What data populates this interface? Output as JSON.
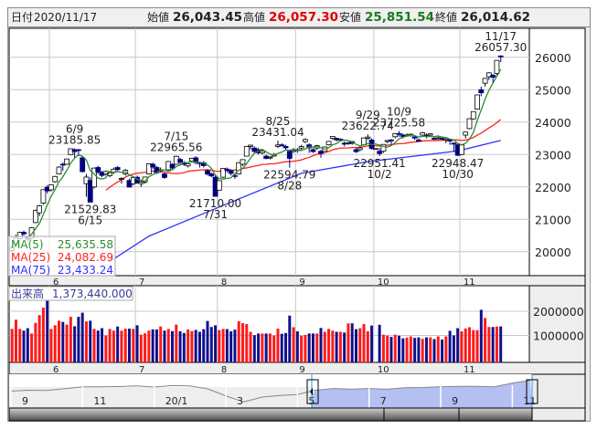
{
  "header": {
    "date_label": "日付",
    "date": "2020/11/17",
    "open_label": "始値",
    "open": "26,043.45",
    "high_label": "高値",
    "high": "26,057.30",
    "low_label": "安値",
    "low": "25,851.54",
    "close_label": "終値",
    "close": "26,014.62"
  },
  "colors": {
    "up_fill": "#ffffff",
    "down_fill": "#000080",
    "ma5": "#2e8b2e",
    "ma25": "#ff2020",
    "ma75": "#3030ff",
    "vol_up": "#ff1a1a",
    "vol_down": "#10108c",
    "high_text": "#e00000",
    "low_text": "#1a7a1a",
    "selection": "#b4bff2"
  },
  "legend": [
    {
      "label": "MA(5)",
      "value": "25,635.58",
      "color": "#2e8b2e"
    },
    {
      "label": "MA(25)",
      "value": "24,082.69",
      "color": "#ff2020"
    },
    {
      "label": "MA(75)",
      "value": "23,433.24",
      "color": "#3030ff"
    }
  ],
  "volume_label": {
    "label": "出来高",
    "value": "1,373,440.000"
  },
  "chart_data": {
    "type": "candlestick",
    "ylim": [
      19270,
      26900
    ],
    "yticks": [
      "20000",
      "21000",
      "22000",
      "23000",
      "24000",
      "25000",
      "26000"
    ],
    "volume_yticks": [
      "1000000",
      "2000000"
    ],
    "month_ticks": [
      {
        "date": "6/1",
        "label": "6"
      },
      {
        "date": "7/1",
        "label": "7"
      },
      {
        "date": "8/3",
        "label": "8"
      },
      {
        "date": "9/1",
        "label": "9"
      },
      {
        "date": "10/1",
        "label": "10"
      },
      {
        "date": "11/2",
        "label": "11"
      }
    ],
    "candles": [
      [
        "5/18",
        20037,
        20172,
        19990,
        20133,
        1270000
      ],
      [
        "5/19",
        20245,
        20530,
        20220,
        20433,
        1650000
      ],
      [
        "5/20",
        20400,
        20620,
        20380,
        20595,
        1270000
      ],
      [
        "5/21",
        20600,
        20650,
        20500,
        20552,
        1200000
      ],
      [
        "5/22",
        20450,
        20460,
        20300,
        20388,
        1300000
      ],
      [
        "5/25",
        20420,
        20760,
        20400,
        20741,
        1080000
      ],
      [
        "5/26",
        20900,
        21300,
        20880,
        21271,
        1520000
      ],
      [
        "5/27",
        21200,
        21450,
        21100,
        21419,
        1840000
      ],
      [
        "5/28",
        21500,
        21920,
        21450,
        21916,
        2150000
      ],
      [
        "5/29",
        21990,
        22060,
        21800,
        21877,
        2430000
      ],
      [
        "6/1",
        21910,
        22070,
        21860,
        22062,
        1270000
      ],
      [
        "6/2",
        22160,
        22340,
        22130,
        22325,
        1420000
      ],
      [
        "6/3",
        22400,
        22640,
        22390,
        22613,
        1610000
      ],
      [
        "6/4",
        22700,
        22760,
        22500,
        22695,
        1560000
      ],
      [
        "6/5",
        22700,
        22880,
        22680,
        22863,
        1450000
      ],
      [
        "6/8",
        23000,
        23180,
        22990,
        23178,
        1770000
      ],
      [
        "6/9",
        23150,
        23185.85,
        22900,
        23091,
        1380000
      ],
      [
        "6/10",
        23150,
        23170,
        22950,
        23124,
        1770000
      ],
      [
        "6/11",
        22900,
        22950,
        22450,
        22472,
        1940000
      ],
      [
        "6/12",
        22100,
        22400,
        21700,
        22305,
        1580000
      ],
      [
        "6/15",
        22200,
        22300,
        21529.83,
        21531,
        1610000
      ],
      [
        "6/16",
        22000,
        22600,
        21950,
        22582,
        1270000
      ],
      [
        "6/17",
        22600,
        22650,
        22400,
        22455,
        1200000
      ],
      [
        "6/18",
        22450,
        22500,
        22300,
        22355,
        1300000
      ],
      [
        "6/19",
        22400,
        22500,
        22350,
        22478,
        1000000
      ],
      [
        "6/22",
        22350,
        22500,
        22300,
        22437,
        1270000
      ],
      [
        "6/23",
        22450,
        22600,
        22400,
        22549,
        1200000
      ],
      [
        "6/24",
        22600,
        22650,
        22500,
        22534,
        1370000
      ],
      [
        "6/25",
        22250,
        22300,
        22100,
        22259,
        1200000
      ],
      [
        "6/26",
        22400,
        22550,
        22350,
        22512,
        1280000
      ],
      [
        "6/29",
        22200,
        22250,
        21990,
        21995,
        1280000
      ],
      [
        "6/30",
        22100,
        22300,
        22050,
        22288,
        1270000
      ],
      [
        "7/1",
        22300,
        22350,
        22100,
        22122,
        1420000
      ],
      [
        "7/2",
        22100,
        22200,
        22000,
        22146,
        1030000
      ],
      [
        "7/3",
        22150,
        22320,
        22100,
        22306,
        1090000
      ],
      [
        "7/6",
        22400,
        22730,
        22380,
        22714,
        1200000
      ],
      [
        "7/7",
        22700,
        22750,
        22550,
        22614,
        1250000
      ],
      [
        "7/8",
        22600,
        22650,
        22400,
        22438,
        1250000
      ],
      [
        "7/9",
        22500,
        22600,
        22450,
        22529,
        1370000
      ],
      [
        "7/10",
        22400,
        22450,
        22250,
        22291,
        1200000
      ],
      [
        "7/13",
        22500,
        22800,
        22480,
        22784,
        1270000
      ],
      [
        "7/14",
        22700,
        22720,
        22550,
        22587,
        1180000
      ],
      [
        "7/15",
        22700,
        22965.56,
        22680,
        22945,
        1450000
      ],
      [
        "7/16",
        22850,
        22900,
        22700,
        22770,
        1170000
      ],
      [
        "7/17",
        22750,
        22800,
        22650,
        22696,
        1100000
      ],
      [
        "7/20",
        22650,
        22750,
        22600,
        22717,
        1250000
      ],
      [
        "7/21",
        22800,
        22900,
        22750,
        22884,
        1180000
      ],
      [
        "7/22",
        22900,
        22950,
        22700,
        22751,
        1230000
      ],
      [
        "7/27",
        22750,
        22780,
        22600,
        22715,
        1150000
      ],
      [
        "7/28",
        22750,
        22800,
        22600,
        22657,
        1260000
      ],
      [
        "7/29",
        22500,
        22550,
        22350,
        22397,
        1600000
      ],
      [
        "7/30",
        22400,
        22450,
        22300,
        22339,
        1350000
      ],
      [
        "7/31",
        22300,
        22350,
        21710.0,
        21710,
        1420000
      ],
      [
        "8/3",
        21900,
        22200,
        21890,
        22195,
        1220000
      ],
      [
        "8/4",
        22300,
        22580,
        22280,
        22573,
        1270000
      ],
      [
        "8/5",
        22550,
        22600,
        22450,
        22514,
        1260000
      ],
      [
        "8/6",
        22500,
        22550,
        22350,
        22418,
        1170000
      ],
      [
        "8/7",
        22350,
        22400,
        22250,
        22329,
        1240000
      ],
      [
        "8/11",
        22400,
        22760,
        22380,
        22750,
        1590000
      ],
      [
        "8/12",
        22700,
        22850,
        22650,
        22843,
        1510000
      ],
      [
        "8/13",
        22950,
        23260,
        22940,
        23249,
        1470000
      ],
      [
        "8/14",
        23250,
        23300,
        23150,
        23289,
        1150000
      ],
      [
        "8/17",
        23200,
        23250,
        23050,
        23096,
        1010000
      ],
      [
        "8/18",
        23150,
        23200,
        23000,
        23051,
        1080000
      ],
      [
        "8/19",
        23050,
        23150,
        23000,
        23110,
        1080000
      ],
      [
        "8/20",
        22950,
        23000,
        22850,
        22880,
        1080000
      ],
      [
        "8/21",
        22900,
        22950,
        22850,
        22920,
        1080000
      ],
      [
        "8/24",
        22950,
        23050,
        22940,
        22985,
        1000000
      ],
      [
        "8/25",
        23250,
        23431.04,
        23200,
        23296,
        1280000
      ],
      [
        "8/26",
        23300,
        23350,
        23250,
        23290,
        1070000
      ],
      [
        "8/27",
        23250,
        23300,
        23150,
        23208,
        1100000
      ],
      [
        "8/28",
        23100,
        23150,
        22594.79,
        22882,
        1820000
      ],
      [
        "8/31",
        23100,
        23200,
        23050,
        23139,
        1340000
      ],
      [
        "9/1",
        23150,
        23200,
        23050,
        23138,
        1170000
      ],
      [
        "9/2",
        23200,
        23300,
        23150,
        23247,
        990000
      ],
      [
        "9/3",
        23400,
        23500,
        23350,
        23465,
        1020000
      ],
      [
        "9/4",
        23300,
        23350,
        23050,
        23205,
        1080000
      ],
      [
        "9/7",
        23150,
        23200,
        23050,
        23089,
        1080000
      ],
      [
        "9/8",
        23200,
        23300,
        23150,
        23274,
        1080000
      ],
      [
        "9/9",
        23100,
        23150,
        22900,
        23032,
        1310000
      ],
      [
        "9/10",
        23100,
        23250,
        23100,
        23235,
        1150000
      ],
      [
        "9/11",
        23300,
        23420,
        23280,
        23406,
        1270000
      ],
      [
        "9/14",
        23500,
        23570,
        23450,
        23559,
        1200000
      ],
      [
        "9/15",
        23500,
        23520,
        23400,
        23454,
        1150000
      ],
      [
        "9/16",
        23450,
        23500,
        23400,
        23475,
        1150000
      ],
      [
        "9/17",
        23350,
        23400,
        23250,
        23319,
        1120000
      ],
      [
        "9/18",
        23350,
        23400,
        23300,
        23360,
        1500000
      ],
      [
        "9/23",
        23400,
        23420,
        23300,
        23346,
        1500000
      ],
      [
        "9/24",
        23150,
        23200,
        23050,
        23087,
        1260000
      ],
      [
        "9/25",
        23150,
        23250,
        23100,
        23204,
        1300000
      ],
      [
        "9/28",
        23300,
        23520,
        23280,
        23511,
        1470000
      ],
      [
        "9/29",
        23500,
        23622.74,
        23450,
        23539,
        1170000
      ],
      [
        "9/30",
        23450,
        23500,
        23150,
        23185,
        1410000
      ],
      [
        "10/1",
        23185,
        23185,
        23185,
        23185,
        0
      ],
      [
        "10/2",
        23100,
        23200,
        22951.41,
        23029,
        1440000
      ],
      [
        "10/5",
        23100,
        23320,
        23050,
        23312,
        1030000
      ],
      [
        "10/6",
        23400,
        23450,
        23350,
        23433,
        1000000
      ],
      [
        "10/7",
        23450,
        23480,
        23300,
        23422,
        940000
      ],
      [
        "10/8",
        23550,
        23660,
        23500,
        23647,
        1030000
      ],
      [
        "10/9",
        23650,
        23725.58,
        23550,
        23620,
        990000
      ],
      [
        "10/12",
        23600,
        23650,
        23500,
        23558,
        880000
      ],
      [
        "10/13",
        23580,
        23650,
        23550,
        23601,
        910000
      ],
      [
        "10/14",
        23600,
        23650,
        23550,
        23626,
        960000
      ],
      [
        "10/15",
        23550,
        23560,
        23450,
        23507,
        900000
      ],
      [
        "10/16",
        23450,
        23500,
        23400,
        23410,
        920000
      ],
      [
        "10/19",
        23600,
        23700,
        23590,
        23671,
        860000
      ],
      [
        "10/20",
        23600,
        23650,
        23500,
        23567,
        920000
      ],
      [
        "10/21",
        23600,
        23650,
        23550,
        23639,
        920000
      ],
      [
        "10/22",
        23500,
        23550,
        23450,
        23474,
        850000
      ],
      [
        "10/23",
        23500,
        23550,
        23450,
        23516,
        960000
      ],
      [
        "10/26",
        23500,
        23550,
        23450,
        23494,
        830000
      ],
      [
        "10/27",
        23450,
        23500,
        23350,
        23485,
        960000
      ],
      [
        "10/28",
        23450,
        23480,
        23300,
        23418,
        1190000
      ],
      [
        "10/29",
        23350,
        23380,
        23100,
        23331,
        1000000
      ],
      [
        "10/30",
        23300,
        23350,
        22948.47,
        22977,
        1300000
      ],
      [
        "11/2",
        23000,
        23300,
        22980,
        23295,
        1170000
      ],
      [
        "11/4",
        23600,
        23700,
        23500,
        23695,
        1290000
      ],
      [
        "11/5",
        23800,
        24110,
        23780,
        24105,
        1340000
      ],
      [
        "11/6",
        24100,
        24330,
        24080,
        24325,
        1220000
      ],
      [
        "11/9",
        24400,
        24840,
        24380,
        24839,
        1220000
      ],
      [
        "11/10",
        25000,
        25100,
        24800,
        24905,
        2060000
      ],
      [
        "11/11",
        25200,
        25350,
        25100,
        25349,
        1720000
      ],
      [
        "11/12",
        25400,
        25540,
        25300,
        25520,
        1350000
      ],
      [
        "11/13",
        25450,
        25480,
        25200,
        25385,
        1350000
      ],
      [
        "11/16",
        25500,
        25910,
        25450,
        25906,
        1370000
      ],
      [
        "11/17",
        26043.45,
        26057.3,
        25851.54,
        26014.62,
        1373440
      ]
    ],
    "ma75": [
      [
        "6/22",
        19700
      ],
      [
        "7/6",
        20480
      ],
      [
        "8/3",
        21380
      ],
      [
        "9/2",
        22420
      ],
      [
        "9/29",
        22780
      ],
      [
        "10/30",
        23110
      ],
      [
        "11/17",
        23433.24
      ]
    ],
    "annotations": [
      {
        "date": "6/9",
        "value": "23185.85",
        "pos": "above"
      },
      {
        "date": "6/15",
        "value": "21529.83",
        "pos": "below"
      },
      {
        "date": "7/15",
        "value": "22965.56",
        "pos": "above"
      },
      {
        "date": "7/31",
        "value": "21710.00",
        "pos": "below"
      },
      {
        "date": "8/25",
        "value": "23431.04",
        "pos": "above"
      },
      {
        "date": "8/28",
        "value": "22594.79",
        "pos": "below"
      },
      {
        "date": "9/29",
        "value": "23622.74",
        "pos": "above"
      },
      {
        "date": "10/2",
        "value": "22951.41",
        "pos": "below"
      },
      {
        "date": "10/9",
        "value": "23725.58",
        "pos": "above"
      },
      {
        "date": "10/30",
        "value": "22948.47",
        "pos": "below"
      },
      {
        "date": "11/17",
        "value": "26057.30",
        "pos": "above"
      }
    ]
  },
  "navigator": {
    "values": [
      21500,
      21900,
      21800,
      22500,
      23300,
      23300,
      23400,
      23700,
      23200,
      23800,
      23700,
      22400,
      19500,
      17000,
      19000,
      19700,
      20100,
      21900,
      22600,
      22300,
      22600,
      22300,
      22900,
      23000,
      23300,
      23500,
      23500,
      23300,
      24800,
      26000
    ],
    "labels": [
      {
        "i": 0,
        "text": "9"
      },
      {
        "i": 4,
        "text": "11"
      },
      {
        "i": 8,
        "text": "20/1"
      },
      {
        "i": 12,
        "text": "3"
      },
      {
        "i": 16,
        "text": "5"
      },
      {
        "i": 20,
        "text": "7"
      },
      {
        "i": 24,
        "text": "9"
      },
      {
        "i": 28,
        "text": "11"
      }
    ]
  }
}
